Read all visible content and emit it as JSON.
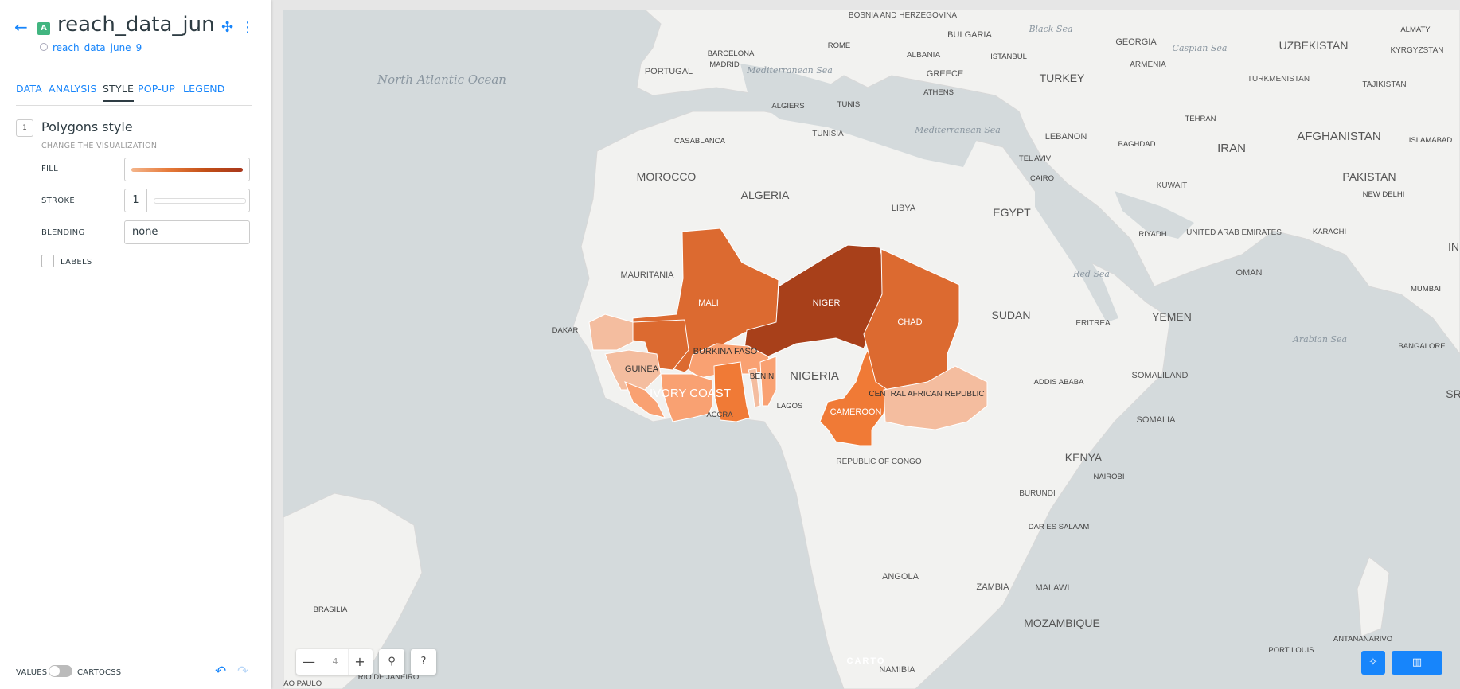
{
  "header": {
    "title": "reach_data_jun..",
    "source": "reach_data_june_9",
    "layer_letter": "A"
  },
  "tabs": [
    "DATA",
    "ANALYSIS",
    "STYLE",
    "POP-UP",
    "LEGEND"
  ],
  "active_tab": "STYLE",
  "style": {
    "number": "1",
    "title": "Polygons style",
    "subtitle": "CHANGE THE VISUALIZATION",
    "fill_label": "FILL",
    "stroke_label": "STROKE",
    "stroke_value": "1",
    "blending_label": "BLENDING",
    "blending_value": "none",
    "labels_label": "LABELS"
  },
  "footer": {
    "values_label": "VALUES",
    "cartocss_label": "CARTOCSS"
  },
  "map": {
    "zoom_level": "4",
    "attribution": "CARTO",
    "colors": {
      "water": "#d4dadc",
      "land": "#f2f2f0",
      "accent": "#1785fb"
    },
    "choropleth_colors": [
      "#a8401a",
      "#dc6a30",
      "#f07a36",
      "#f9a172",
      "#f4bd9f"
    ],
    "country_labels": [
      "BOSNIA AND HERZEGOVINA",
      "BULGARIA",
      "GEORGIA",
      "UZBEKISTAN",
      "KYRGYZSTAN",
      "ALBANIA",
      "ARMENIA",
      "TURKMENISTAN",
      "TAJIKISTAN",
      "PORTUGAL",
      "GREECE",
      "TURKEY",
      "TUNISIA",
      "LEBANON",
      "IRAN",
      "AFGHANISTAN",
      "PAKISTAN",
      "MOROCCO",
      "ALGERIA",
      "LIBYA",
      "EGYPT",
      "KUWAIT",
      "UNITED ARAB EMIRATES",
      "OMAN",
      "MAURITANIA",
      "MALI",
      "NIGER",
      "CHAD",
      "SUDAN",
      "ERITREA",
      "YEMEN",
      "BURKINA FASO",
      "GUINEA",
      "IVORY COAST",
      "BENIN",
      "NIGERIA",
      "SOMALILAND",
      "CENTRAL AFRICAN REPUBLIC",
      "CAMEROON",
      "SOMALIA",
      "KENYA",
      "REPUBLIC OF CONGO",
      "BURUNDI",
      "ANGOLA",
      "ZAMBIA",
      "MALAWI",
      "MOZAMBIQUE",
      "NAMIBIA",
      "IN",
      "SR"
    ],
    "sea_labels": [
      "Black Sea",
      "Caspian Sea",
      "North Atlantic Ocean",
      "Mediterranean Sea",
      "Mediterranean Sea",
      "Red Sea",
      "Arabian Sea"
    ],
    "city_labels": [
      "ALMATY",
      "ROME",
      "ISTANBUL",
      "BARCELONA",
      "MADRID",
      "ATHENS",
      "ALGIERS",
      "TUNIS",
      "TEHRAN",
      "ISLAMABAD",
      "CASABLANCA",
      "BAGHDAD",
      "TEL AVIV",
      "CAIRO",
      "NEW DELHI",
      "RIYADH",
      "KARACHI",
      "MUMBAI",
      "DAKAR",
      "ADDIS ABABA",
      "BANGALORE",
      "ACCRA",
      "LAGOS",
      "NAIROBI",
      "DAR ES SALAAM",
      "BRASILIA",
      "ANTANANARIVO",
      "PORT LOUIS",
      "SAO PAULO",
      "RIO DE JANEIRO"
    ]
  }
}
